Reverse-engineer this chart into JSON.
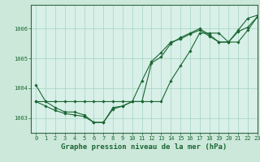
{
  "title": "Graphe pression niveau de la mer (hPa)",
  "background_color": "#cce8da",
  "plot_bg_color": "#d8f0e8",
  "grid_color": "#99ccbb",
  "line_color": "#1a6632",
  "xlim": [
    -0.5,
    23
  ],
  "ylim": [
    1002.5,
    1006.8
  ],
  "yticks": [
    1003,
    1004,
    1005,
    1006
  ],
  "xticks": [
    0,
    1,
    2,
    3,
    4,
    5,
    6,
    7,
    8,
    9,
    10,
    11,
    12,
    13,
    14,
    15,
    16,
    17,
    18,
    19,
    20,
    21,
    22,
    23
  ],
  "series": [
    [
      1004.1,
      1003.55,
      1003.35,
      1003.2,
      1003.2,
      1003.1,
      1002.85,
      1002.85,
      1003.35,
      1003.4,
      1003.55,
      1003.55,
      1004.85,
      1005.05,
      1005.5,
      1005.7,
      1005.85,
      1006.0,
      1005.8,
      1005.55,
      1005.55,
      1005.95,
      1006.35,
      1006.45
    ],
    [
      1003.55,
      1003.55,
      1003.55,
      1003.55,
      1003.55,
      1003.55,
      1003.55,
      1003.55,
      1003.55,
      1003.55,
      1003.55,
      1003.55,
      1003.55,
      1003.55,
      1004.25,
      1004.75,
      1005.25,
      1005.85,
      1005.85,
      1005.85,
      1005.55,
      1005.55,
      1005.95,
      1006.4
    ],
    [
      1003.55,
      1003.4,
      1003.25,
      1003.15,
      1003.1,
      1003.05,
      1002.85,
      1002.85,
      1003.3,
      1003.4,
      1003.55,
      1004.25,
      1004.9,
      1005.2,
      1005.55,
      1005.65,
      1005.82,
      1005.95,
      1005.75,
      1005.55,
      1005.55,
      1005.9,
      1006.05,
      1006.4
    ]
  ],
  "marker": "D",
  "markersize": 1.8,
  "linewidth": 0.8,
  "title_fontsize": 6.5,
  "tick_fontsize": 5.0,
  "tick_color": "#1a6632",
  "label_color": "#1a6632",
  "spine_color": "#336644"
}
